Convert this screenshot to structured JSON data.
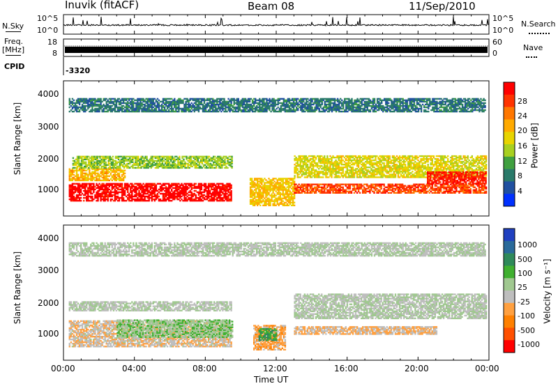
{
  "header": {
    "title": "Inuvik (fitACF)",
    "beam": "Beam 08",
    "date": "11/Sep/2010"
  },
  "nsky": {
    "label": "N.Sky",
    "ticks_left": [
      "10^5",
      "10^0"
    ],
    "ticks_right": [
      "10^5",
      "10^0"
    ],
    "right_label": "N.Search"
  },
  "freq": {
    "label_line1": "Freq.",
    "label_line2": "[MHz]",
    "ticks_left": [
      "18",
      "8"
    ],
    "ticks_right": [
      "60",
      "0"
    ],
    "right_label": "Nave"
  },
  "cpid": {
    "label": "CPID",
    "value": "-3320"
  },
  "power_panel": {
    "ylabel": "Slant Range [km]",
    "yticks": [
      "4000",
      "3000",
      "2000",
      "1000"
    ],
    "colorbar_label": "Power [dB]",
    "colorbar_ticks": [
      "28",
      "24",
      "20",
      "16",
      "12",
      "8",
      "4"
    ],
    "colorbar_colors": [
      "#ff0000",
      "#ff3300",
      "#ff7700",
      "#ffaa00",
      "#e8d400",
      "#a8d020",
      "#40a040",
      "#2a7a6a",
      "#2050a0",
      "#0030ff"
    ]
  },
  "velocity_panel": {
    "ylabel": "Slant Range [km]",
    "yticks": [
      "4000",
      "3000",
      "2000",
      "1000"
    ],
    "colorbar_label": "Velocity [m s⁻¹]",
    "colorbar_ticks": [
      "1000",
      "500",
      "100",
      "25",
      "-25",
      "-100",
      "-500",
      "-1000"
    ],
    "colorbar_colors": [
      "#2040c0",
      "#2a6a9a",
      "#2f8a5a",
      "#40b030",
      "#a0c890",
      "#bebebe",
      "#ffa040",
      "#ff8000",
      "#ff5000",
      "#ff0000"
    ]
  },
  "xaxis": {
    "ticks": [
      "00:00",
      "04:00",
      "08:00",
      "12:00",
      "16:00",
      "20:00",
      "00:00"
    ],
    "label": "Time UT"
  },
  "chart_data": [
    {
      "type": "heatmap",
      "title": "Inuvik (fitACF)",
      "subtitle": "Beam 08",
      "xlabel": "Time UT",
      "ylabel": "Slant Range [km]",
      "colorbar": "Power [dB]",
      "x_range": [
        "00:00",
        "00:00"
      ],
      "ylim": [
        180,
        4500
      ],
      "clim": [
        0,
        30
      ],
      "regions": [
        {
          "t": [
            0.3,
            9.5
          ],
          "r": [
            650,
            1200
          ],
          "value": 29
        },
        {
          "t": [
            0.3,
            3.5
          ],
          "r": [
            1300,
            1700
          ],
          "value": 19
        },
        {
          "t": [
            0.5,
            9.5
          ],
          "r": [
            1700,
            2100
          ],
          "value": 13
        },
        {
          "t": [
            10.5,
            13.0
          ],
          "r": [
            500,
            1400
          ],
          "value": 18
        },
        {
          "t": [
            13.0,
            23.8
          ],
          "r": [
            900,
            1200
          ],
          "value": 25
        },
        {
          "t": [
            13.0,
            23.8
          ],
          "r": [
            1400,
            2100
          ],
          "value": 16
        },
        {
          "t": [
            20.5,
            23.8
          ],
          "r": [
            1200,
            1600
          ],
          "value": 27
        },
        {
          "t": [
            0.3,
            23.8
          ],
          "r": [
            3500,
            3950
          ],
          "value": 7
        }
      ]
    },
    {
      "type": "heatmap",
      "xlabel": "Time UT",
      "ylabel": "Slant Range [km]",
      "colorbar": "Velocity [m s⁻¹]",
      "x_range": [
        "00:00",
        "00:00"
      ],
      "ylim": [
        180,
        4500
      ],
      "clim": [
        -1000,
        1000
      ],
      "regions": [
        {
          "t": [
            0.3,
            9.5
          ],
          "r": [
            600,
            1450
          ],
          "value": -150
        },
        {
          "t": [
            3.0,
            9.5
          ],
          "r": [
            900,
            1450
          ],
          "value": 150
        },
        {
          "t": [
            0.3,
            9.5
          ],
          "r": [
            1750,
            2050
          ],
          "value": 0
        },
        {
          "t": [
            10.7,
            12.5
          ],
          "r": [
            500,
            1300
          ],
          "value": -300
        },
        {
          "t": [
            11.0,
            12.0
          ],
          "r": [
            800,
            1200
          ],
          "value": 400
        },
        {
          "t": [
            13.0,
            23.8
          ],
          "r": [
            1500,
            2300
          ],
          "value": 0
        },
        {
          "t": [
            13.0,
            21.0
          ],
          "r": [
            1000,
            1250
          ],
          "value": -200
        },
        {
          "t": [
            0.3,
            23.8
          ],
          "r": [
            3500,
            3950
          ],
          "value": 0
        }
      ]
    }
  ]
}
